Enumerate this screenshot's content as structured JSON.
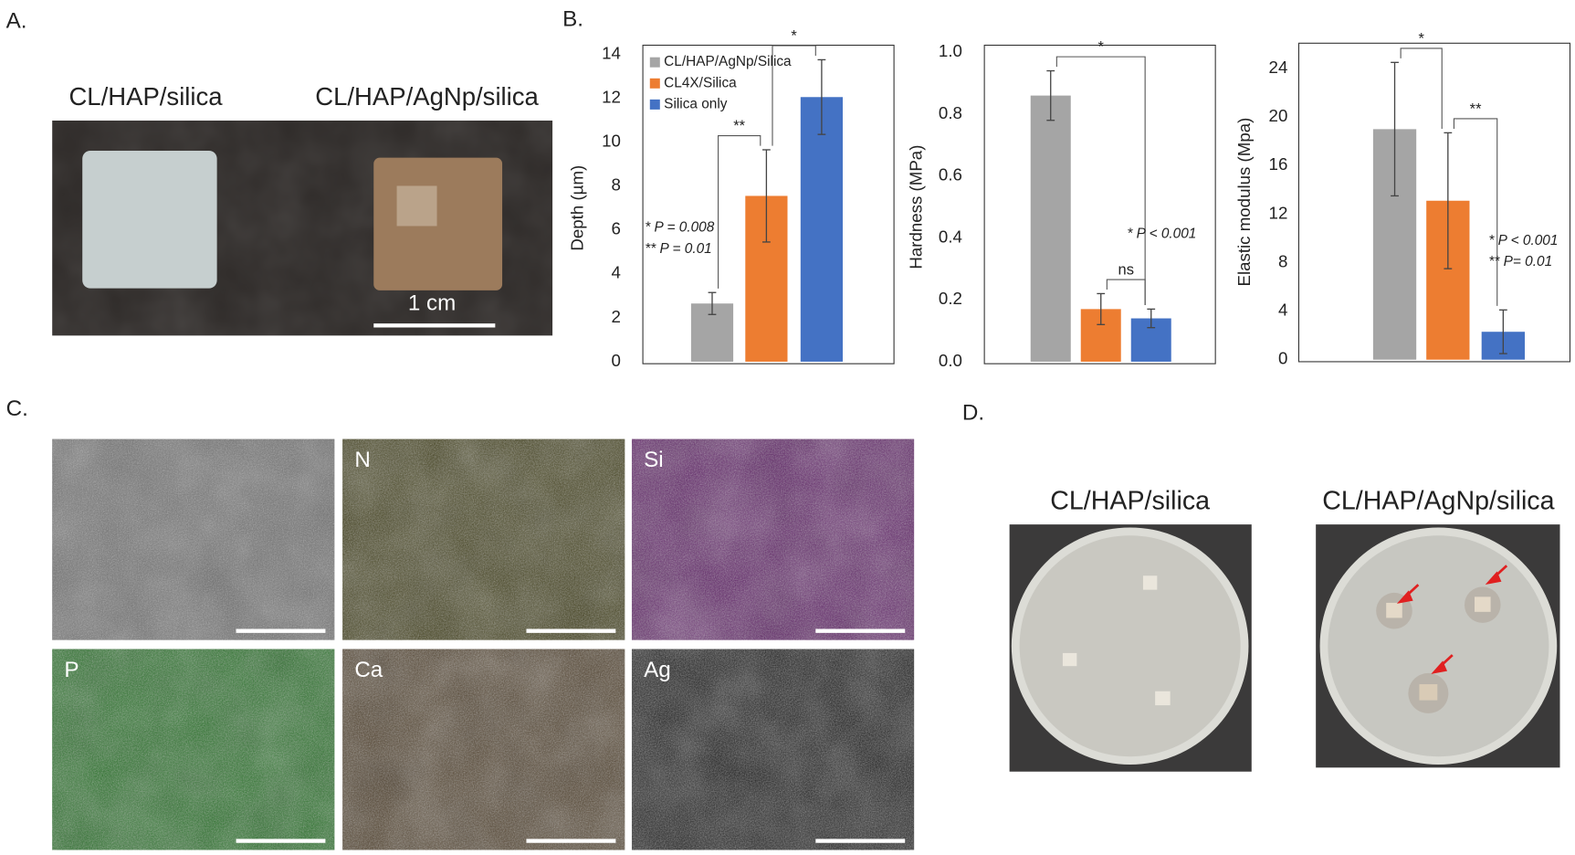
{
  "panel_labels": [
    "A.",
    "B.",
    "C.",
    "D."
  ],
  "panel_a": {
    "labels": [
      "CL/HAP/silica",
      "CL/HAP/AgNp/silica"
    ],
    "scale_bar": "1 cm"
  },
  "chart_data": [
    {
      "type": "bar",
      "ylabel": "Depth (µm)",
      "categories": [
        null
      ],
      "series": [
        {
          "name": "CL/HAP/AgNp/Silica",
          "color": "#a5a5a5",
          "values": [
            2.65
          ],
          "errors": [
            0.5
          ]
        },
        {
          "name": "CL4X/Silica",
          "color": "#ed7d31",
          "values": [
            7.55
          ],
          "errors": [
            2.1
          ]
        },
        {
          "name": "Silica only",
          "color": "#4472c4",
          "values": [
            12.05
          ],
          "errors": [
            1.7
          ]
        }
      ],
      "ylim": [
        0,
        14
      ],
      "yticks": [
        0,
        2,
        4,
        6,
        8,
        10,
        12,
        14
      ],
      "legend": "upper left",
      "significance": [
        "**",
        "*"
      ],
      "annotations": [
        "* P = 0.008",
        "** P = 0.01"
      ]
    },
    {
      "type": "bar",
      "ylabel": "Hardness (MPa)",
      "categories": [
        null
      ],
      "series": [
        {
          "color": "#a5a5a5",
          "values": [
            0.86
          ],
          "errors": [
            0.08
          ]
        },
        {
          "color": "#ed7d31",
          "values": [
            0.17
          ],
          "errors": [
            0.05
          ]
        },
        {
          "color": "#4472c4",
          "values": [
            0.14
          ],
          "errors": [
            0.03
          ]
        }
      ],
      "ylim": [
        0,
        1
      ],
      "yticks": [
        {
          "value": 0,
          "label": "0.0"
        },
        0.2,
        0.4,
        0.6,
        0.8,
        {
          "value": 1,
          "label": "1.0"
        }
      ],
      "significance": [
        "*",
        "ns"
      ],
      "annotations": [
        "* P < 0.001"
      ]
    },
    {
      "type": "bar",
      "ylabel": "Elastic modulus (Mpa)",
      "categories": [
        null
      ],
      "series": [
        {
          "color": "#a5a5a5",
          "values": [
            19.0
          ],
          "errors": [
            5.5
          ]
        },
        {
          "color": "#ed7d31",
          "values": [
            13.1
          ],
          "errors": [
            5.6
          ]
        },
        {
          "color": "#4472c4",
          "values": [
            2.3
          ],
          "errors": [
            1.8
          ]
        }
      ],
      "ylim": [
        0,
        26
      ],
      "yticks": [
        0,
        4,
        8,
        12,
        16,
        20,
        24
      ],
      "significance": [
        "*",
        "**"
      ],
      "annotations": [
        "* P < 0.001",
        "** P= 0.01"
      ]
    }
  ],
  "panel_c": {
    "labels": [
      "N",
      "Si",
      "P",
      "Ca",
      "Ag"
    ]
  },
  "panel_d": {
    "labels": [
      "CL/HAP/silica",
      "CL/HAP/AgNp/silica"
    ]
  }
}
